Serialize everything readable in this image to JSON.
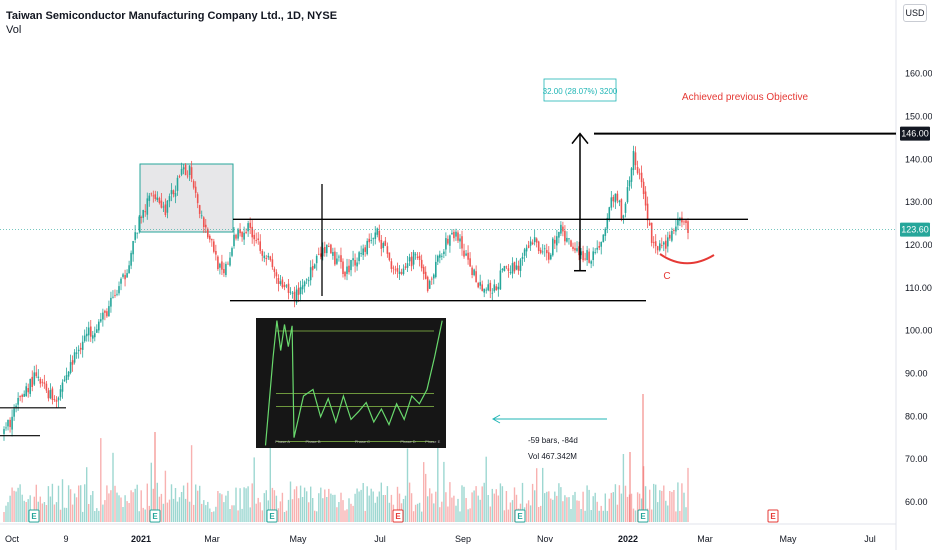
{
  "header": {
    "title": "Taiwan Semiconductor Manufacturing Company Ltd., 1D, NYSE",
    "subtitle": "Vol"
  },
  "currency_button": "USD",
  "colors": {
    "up": "#26a69a",
    "down": "#ef5350",
    "annotation_red": "#e53935",
    "measure_teal": "#1fb5b5",
    "last_price_bg": "#26a69a",
    "level_bg": "#131722"
  },
  "chart_data": {
    "type": "candlestick",
    "title": "Taiwan Semiconductor Manufacturing Company Ltd., 1D, NYSE",
    "y_ticks": [
      60,
      70,
      80,
      90,
      100,
      110,
      120,
      130,
      140,
      150,
      160
    ],
    "y_range": [
      58.5,
      166.8
    ],
    "x_ticks": [
      "Oct",
      "9",
      "2021",
      "Mar",
      "May",
      "Jul",
      "Sep",
      "Nov",
      "2022",
      "Mar",
      "May",
      "Jul"
    ],
    "x_bold_ticks": [
      "2021",
      "2022"
    ],
    "price_tags": [
      {
        "label": "146.00",
        "value": 146.0,
        "style": "level"
      },
      {
        "label": "123.60",
        "value": 123.6,
        "style": "last"
      }
    ],
    "last_price": 123.6,
    "series_anchors": [
      {
        "t": 0,
        "p": 76
      },
      {
        "t": 0.03,
        "p": 86
      },
      {
        "t": 0.045,
        "p": 89
      },
      {
        "t": 0.075,
        "p": 84
      },
      {
        "t": 0.115,
        "p": 98
      },
      {
        "t": 0.145,
        "p": 103
      },
      {
        "t": 0.175,
        "p": 112
      },
      {
        "t": 0.195,
        "p": 124
      },
      {
        "t": 0.218,
        "p": 133
      },
      {
        "t": 0.235,
        "p": 128
      },
      {
        "t": 0.258,
        "p": 136
      },
      {
        "t": 0.272,
        "p": 138
      },
      {
        "t": 0.29,
        "p": 126
      },
      {
        "t": 0.305,
        "p": 120
      },
      {
        "t": 0.32,
        "p": 112
      },
      {
        "t": 0.34,
        "p": 123
      },
      {
        "t": 0.36,
        "p": 124
      },
      {
        "t": 0.385,
        "p": 117
      },
      {
        "t": 0.405,
        "p": 110
      },
      {
        "t": 0.425,
        "p": 108
      },
      {
        "t": 0.445,
        "p": 113
      },
      {
        "t": 0.47,
        "p": 119
      },
      {
        "t": 0.5,
        "p": 114
      },
      {
        "t": 0.53,
        "p": 120
      },
      {
        "t": 0.545,
        "p": 123
      },
      {
        "t": 0.565,
        "p": 116
      },
      {
        "t": 0.585,
        "p": 113
      },
      {
        "t": 0.6,
        "p": 118
      },
      {
        "t": 0.62,
        "p": 110
      },
      {
        "t": 0.64,
        "p": 119
      },
      {
        "t": 0.66,
        "p": 123
      },
      {
        "t": 0.68,
        "p": 115
      },
      {
        "t": 0.7,
        "p": 110
      },
      {
        "t": 0.715,
        "p": 109
      },
      {
        "t": 0.73,
        "p": 114
      },
      {
        "t": 0.75,
        "p": 115
      },
      {
        "t": 0.775,
        "p": 121
      },
      {
        "t": 0.795,
        "p": 117
      },
      {
        "t": 0.81,
        "p": 124
      },
      {
        "t": 0.83,
        "p": 120
      },
      {
        "t": 0.855,
        "p": 117
      },
      {
        "t": 0.875,
        "p": 121
      },
      {
        "t": 0.89,
        "p": 132
      },
      {
        "t": 0.905,
        "p": 127
      },
      {
        "t": 0.92,
        "p": 141
      },
      {
        "t": 0.935,
        "p": 132
      },
      {
        "t": 0.95,
        "p": 119
      },
      {
        "t": 0.965,
        "p": 120
      },
      {
        "t": 0.985,
        "p": 125
      },
      {
        "t": 1.0,
        "p": 123.6
      }
    ],
    "annotations": {
      "upper_resistance": 126,
      "lower_support": 107,
      "measure_top": 146,
      "measure_bottom": 114,
      "measure_label": "32.00 (28.07%) 3200",
      "objective_label": "Achieved previous Objective",
      "cup_label": "C",
      "bars_label": "-59 bars, -84d",
      "vol_label": "Vol 467.342M",
      "early_levels": [
        82,
        75.5
      ]
    },
    "inset": {
      "labels": [
        "Phase A",
        "Phase B",
        "Phase C",
        "Phase D",
        "Phase E"
      ],
      "points": [
        [
          0.05,
          0.98
        ],
        [
          0.09,
          0.3
        ],
        [
          0.11,
          0.02
        ],
        [
          0.13,
          0.25
        ],
        [
          0.15,
          0.05
        ],
        [
          0.17,
          0.22
        ],
        [
          0.19,
          0.06
        ],
        [
          0.2,
          0.92
        ],
        [
          0.25,
          0.6
        ],
        [
          0.3,
          0.55
        ],
        [
          0.34,
          0.76
        ],
        [
          0.38,
          0.62
        ],
        [
          0.42,
          0.8
        ],
        [
          0.46,
          0.6
        ],
        [
          0.5,
          0.78
        ],
        [
          0.54,
          0.72
        ],
        [
          0.58,
          0.65
        ],
        [
          0.62,
          0.8
        ],
        [
          0.66,
          0.7
        ],
        [
          0.7,
          0.82
        ],
        [
          0.74,
          0.66
        ],
        [
          0.78,
          0.78
        ],
        [
          0.82,
          0.6
        ],
        [
          0.86,
          0.66
        ],
        [
          0.9,
          0.55
        ],
        [
          0.94,
          0.3
        ],
        [
          0.98,
          0.02
        ]
      ],
      "levels": [
        0.1,
        0.58,
        0.68,
        0.95
      ]
    },
    "event_markers": [
      "E",
      "E",
      "E",
      "E",
      "E",
      "E",
      "E",
      "E",
      "E",
      "E",
      "E"
    ]
  }
}
